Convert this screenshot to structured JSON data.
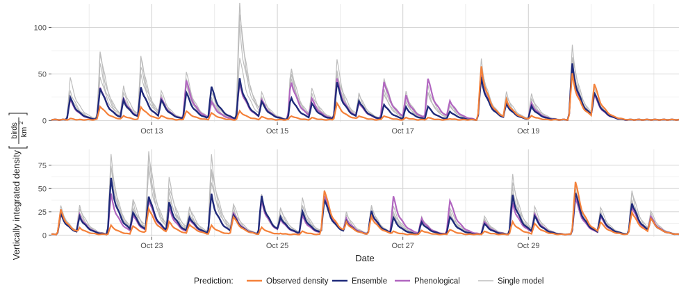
{
  "chart_data": {
    "type": "line",
    "xlabel": "Date",
    "ylabel": "Vertically integrated density",
    "ylabel_unit": {
      "numerator": "birds",
      "denominator": "km",
      "exponent": "2"
    },
    "legend": {
      "title": "Prediction:",
      "position": "bottom",
      "entries": [
        {
          "name": "Observed density",
          "color": "#f4813a"
        },
        {
          "name": "Ensemble",
          "color": "#1f2a7a"
        },
        {
          "name": "Phenological",
          "color": "#b166c0"
        },
        {
          "name": "Single model",
          "color": "#bdbdbd"
        }
      ]
    },
    "grid": true,
    "panels": [
      {
        "xlim": [
          11.4,
          21.4
        ],
        "ylim": [
          -2,
          125
        ],
        "yticks": [
          0,
          50,
          100
        ],
        "xticks": [
          {
            "x": 13,
            "label": "Oct 13"
          },
          {
            "x": 15,
            "label": "Oct 15"
          },
          {
            "x": 17,
            "label": "Oct 17"
          },
          {
            "x": 19,
            "label": "Oct 19"
          }
        ],
        "nights": [
          {
            "t": 11.7,
            "obs": 2,
            "ens": 24,
            "phe": 22,
            "single": [
              45,
              33,
              22,
              28
            ]
          },
          {
            "t": 12.18,
            "obs": 16,
            "ens": 37,
            "phe": 38,
            "single": [
              77,
              72,
              50,
              60
            ]
          },
          {
            "t": 12.55,
            "obs": 5,
            "ens": 22,
            "phe": 24,
            "single": [
              37,
              30,
              20,
              25
            ]
          },
          {
            "t": 12.83,
            "obs": 15,
            "ens": 37,
            "phe": 37,
            "single": [
              72,
              68,
              52,
              58
            ]
          },
          {
            "t": 13.15,
            "obs": 5,
            "ens": 22,
            "phe": 24,
            "single": [
              32,
              28,
              20,
              24
            ]
          },
          {
            "t": 13.55,
            "obs": 10,
            "ens": 30,
            "phe": 43,
            "single": [
              52,
              45,
              38,
              40
            ]
          },
          {
            "t": 13.95,
            "obs": 8,
            "ens": 36,
            "phe": 20,
            "single": [
              30,
              25,
              18,
              22
            ]
          },
          {
            "t": 14.4,
            "obs": 10,
            "ens": 44,
            "phe": 40,
            "single": [
              123,
              118,
              100,
              70
            ]
          },
          {
            "t": 14.75,
            "obs": 4,
            "ens": 20,
            "phe": 22,
            "single": [
              30,
              26,
              18,
              22
            ]
          },
          {
            "t": 15.22,
            "obs": 5,
            "ens": 26,
            "phe": 44,
            "single": [
              60,
              55,
              48,
              50
            ]
          },
          {
            "t": 15.55,
            "obs": 3,
            "ens": 18,
            "phe": 23,
            "single": [
              34,
              30,
              22,
              25
            ]
          },
          {
            "t": 15.95,
            "obs": 18,
            "ens": 40,
            "phe": 44,
            "single": [
              64,
              55,
              50,
              48
            ]
          },
          {
            "t": 16.3,
            "obs": 5,
            "ens": 22,
            "phe": 20,
            "single": [
              30,
              28,
              20,
              22
            ]
          },
          {
            "t": 16.7,
            "obs": 5,
            "ens": 18,
            "phe": 44,
            "single": [
              48,
              40,
              30,
              32
            ]
          },
          {
            "t": 17.05,
            "obs": 3,
            "ens": 14,
            "phe": 26,
            "single": [
              30,
              26,
              20,
              20
            ]
          },
          {
            "t": 17.4,
            "obs": 3,
            "ens": 15,
            "phe": 45,
            "single": [
              44,
              38,
              30,
              30
            ]
          },
          {
            "t": 17.75,
            "obs": 2,
            "ens": 10,
            "phe": 22,
            "single": [
              22,
              20,
              16,
              16
            ]
          },
          {
            "t": 18.25,
            "obs": 56,
            "ens": 45,
            "phe": 47,
            "single": [
              64,
              58,
              52,
              50
            ]
          },
          {
            "t": 18.65,
            "obs": 22,
            "ens": 18,
            "phe": 20,
            "single": [
              30,
              26,
              22,
              22
            ]
          },
          {
            "t": 19.05,
            "obs": 5,
            "ens": 15,
            "phe": 18,
            "single": [
              28,
              24,
              20,
              20
            ]
          },
          {
            "t": 19.7,
            "obs": 48,
            "ens": 58,
            "phe": 55,
            "single": [
              77,
              72,
              64,
              60
            ]
          },
          {
            "t": 20.05,
            "obs": 40,
            "ens": 30,
            "phe": 28,
            "single": [
              40,
              35,
              30,
              30
            ]
          }
        ]
      },
      {
        "xlim": [
          21.4,
          31.4
        ],
        "ylim": [
          -2,
          92
        ],
        "yticks": [
          0,
          25,
          50,
          75
        ],
        "xticks": [
          {
            "x": 23,
            "label": "Oct 23"
          },
          {
            "x": 25,
            "label": "Oct 25"
          },
          {
            "x": 27,
            "label": "Oct 27"
          },
          {
            "x": 29,
            "label": "Oct 29"
          }
        ],
        "nights": [
          {
            "t": 21.55,
            "obs": 26,
            "ens": 22,
            "phe": 24,
            "single": [
              30,
              28,
              24,
              25
            ]
          },
          {
            "t": 21.85,
            "obs": 8,
            "ens": 20,
            "phe": 22,
            "single": [
              32,
              28,
              22,
              24
            ]
          },
          {
            "t": 22.35,
            "obs": 10,
            "ens": 58,
            "phe": 42,
            "single": [
              82,
              78,
              70,
              65
            ]
          },
          {
            "t": 22.7,
            "obs": 10,
            "ens": 25,
            "phe": 22,
            "single": [
              40,
              35,
              30,
              28
            ]
          },
          {
            "t": 22.95,
            "obs": 30,
            "ens": 44,
            "phe": 40,
            "single": [
              92,
              85,
              75,
              70
            ]
          },
          {
            "t": 23.28,
            "obs": 14,
            "ens": 34,
            "phe": 28,
            "single": [
              60,
              55,
              45,
              42
            ]
          },
          {
            "t": 23.6,
            "obs": 12,
            "ens": 20,
            "phe": 18,
            "single": [
              32,
              28,
              24,
              22
            ]
          },
          {
            "t": 23.95,
            "obs": 10,
            "ens": 42,
            "phe": 42,
            "single": [
              82,
              75,
              65,
              60
            ]
          },
          {
            "t": 24.3,
            "obs": 20,
            "ens": 22,
            "phe": 24,
            "single": [
              34,
              30,
              26,
              25
            ]
          },
          {
            "t": 24.75,
            "obs": 8,
            "ens": 40,
            "phe": 36,
            "single": [
              42,
              40,
              38,
              36
            ]
          },
          {
            "t": 25.05,
            "obs": 2,
            "ens": 20,
            "phe": 18,
            "single": [
              30,
              28,
              22,
              22
            ]
          },
          {
            "t": 25.4,
            "obs": 4,
            "ens": 24,
            "phe": 20,
            "single": [
              38,
              34,
              30,
              28
            ]
          },
          {
            "t": 25.75,
            "obs": 50,
            "ens": 40,
            "phe": 44,
            "single": [
              50,
              46,
              42,
              40
            ]
          },
          {
            "t": 26.1,
            "obs": 14,
            "ens": 15,
            "phe": 18,
            "single": [
              25,
              22,
              18,
              18
            ]
          },
          {
            "t": 26.5,
            "obs": 20,
            "ens": 26,
            "phe": 25,
            "single": [
              32,
              30,
              26,
              24
            ]
          },
          {
            "t": 26.85,
            "obs": 4,
            "ens": 18,
            "phe": 40,
            "single": [
              30,
              26,
              22,
              22
            ]
          },
          {
            "t": 27.3,
            "obs": 5,
            "ens": 14,
            "phe": 18,
            "single": [
              20,
              18,
              16,
              16
            ]
          },
          {
            "t": 27.75,
            "obs": 6,
            "ens": 20,
            "phe": 38,
            "single": [
              30,
              26,
              22,
              22
            ]
          },
          {
            "t": 28.3,
            "obs": 4,
            "ens": 12,
            "phe": 14,
            "single": [
              20,
              18,
              16,
              16
            ]
          },
          {
            "t": 28.75,
            "obs": 14,
            "ens": 42,
            "phe": 34,
            "single": [
              64,
              58,
              50,
              46
            ]
          },
          {
            "t": 29.1,
            "obs": 12,
            "ens": 20,
            "phe": 22,
            "single": [
              30,
              26,
              22,
              22
            ]
          },
          {
            "t": 29.75,
            "obs": 58,
            "ens": 46,
            "phe": 40,
            "single": [
              55,
              50,
              44,
              42
            ]
          },
          {
            "t": 30.15,
            "obs": 14,
            "ens": 22,
            "phe": 20,
            "single": [
              30,
              26,
              22,
              22
            ]
          },
          {
            "t": 30.65,
            "obs": 26,
            "ens": 36,
            "phe": 32,
            "single": [
              50,
              45,
              38,
              36
            ]
          },
          {
            "t": 30.95,
            "obs": 18,
            "ens": 18,
            "phe": 20,
            "single": [
              26,
              24,
              20,
              20
            ]
          }
        ]
      }
    ]
  }
}
